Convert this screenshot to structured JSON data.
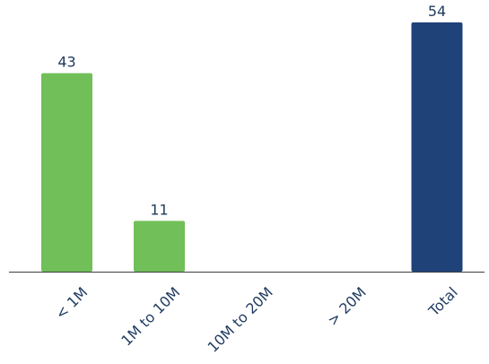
{
  "chart_data": {
    "type": "bar",
    "title": "",
    "xlabel": "",
    "ylabel": "",
    "categories": [
      "< 1M",
      "1M to 10M",
      "10M to 20M",
      "> 20M",
      "Total"
    ],
    "values": [
      43,
      11,
      0,
      0,
      54
    ],
    "data_labels": [
      "43",
      "11",
      "",
      "",
      "54"
    ],
    "ylim": [
      0,
      54
    ],
    "grid": false,
    "legend": "none",
    "colors": {
      "default": "#70bf58",
      "total": "#1f4279",
      "axis": "#3f3f3f",
      "text": "#1f3a5f"
    }
  }
}
